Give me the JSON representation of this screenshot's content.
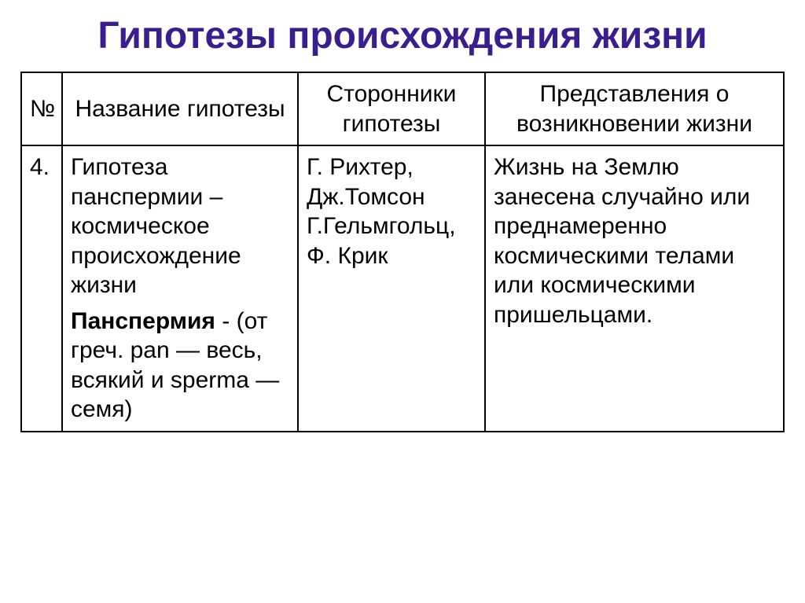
{
  "title": "Гипотезы происхождения жизни",
  "table": {
    "columns": [
      "№",
      "Название гипотезы",
      "Сторонники гипотезы",
      "Представления о возникновении жизни"
    ],
    "row": {
      "num": "4.",
      "name_line1": "Гипотеза панспермии – космическое происхождение жизни",
      "name_bold": "Панспермия",
      "name_rest": " - (от греч. pan — весь, всякий и sperma — семя)",
      "supporters": "Г. Рихтер, Дж.Томсон Г.Гельмгольц, Ф. Крик",
      "representation": "Жизнь на Землю занесена случайно или преднамеренно космическими телами или космическими пришельцами."
    }
  },
  "colors": {
    "title": "#3a1e8f",
    "border": "#000000",
    "text": "#000000",
    "background": "#ffffff"
  },
  "typography": {
    "title_fontsize": 48,
    "title_weight": "bold",
    "cell_fontsize": 30
  }
}
